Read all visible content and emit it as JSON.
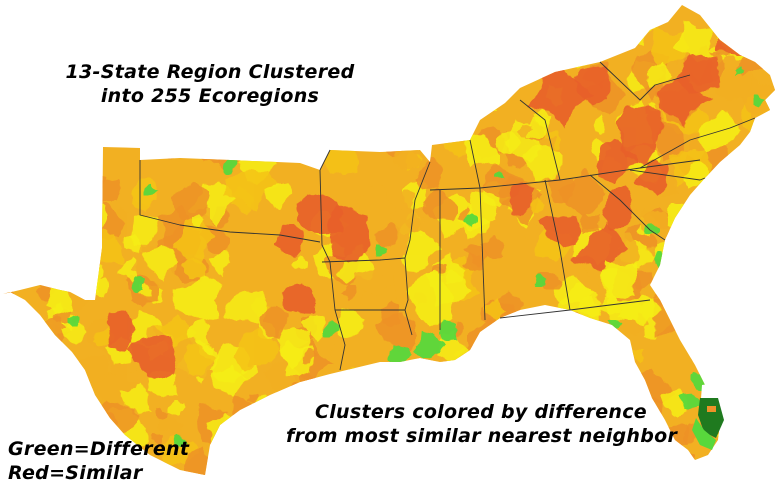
{
  "title": {
    "line1": "13-State Region Clustered",
    "line2": "into 255 Ecoregions"
  },
  "caption": {
    "line1": "Clusters colored by difference",
    "line2": "from most similar nearest neighbor"
  },
  "legend": {
    "green_label": "Green=Different",
    "red_label": "Red=Similar"
  },
  "colors": {
    "background": "#ffffff",
    "map_base": "#f2b022",
    "yellow": "#f6ee12",
    "light_orange": "#f5c419",
    "orange": "#ee9228",
    "red_orange": "#e8602a",
    "green": "#58d83c",
    "dark_green": "#1f7a1f",
    "state_border": "#333333"
  }
}
